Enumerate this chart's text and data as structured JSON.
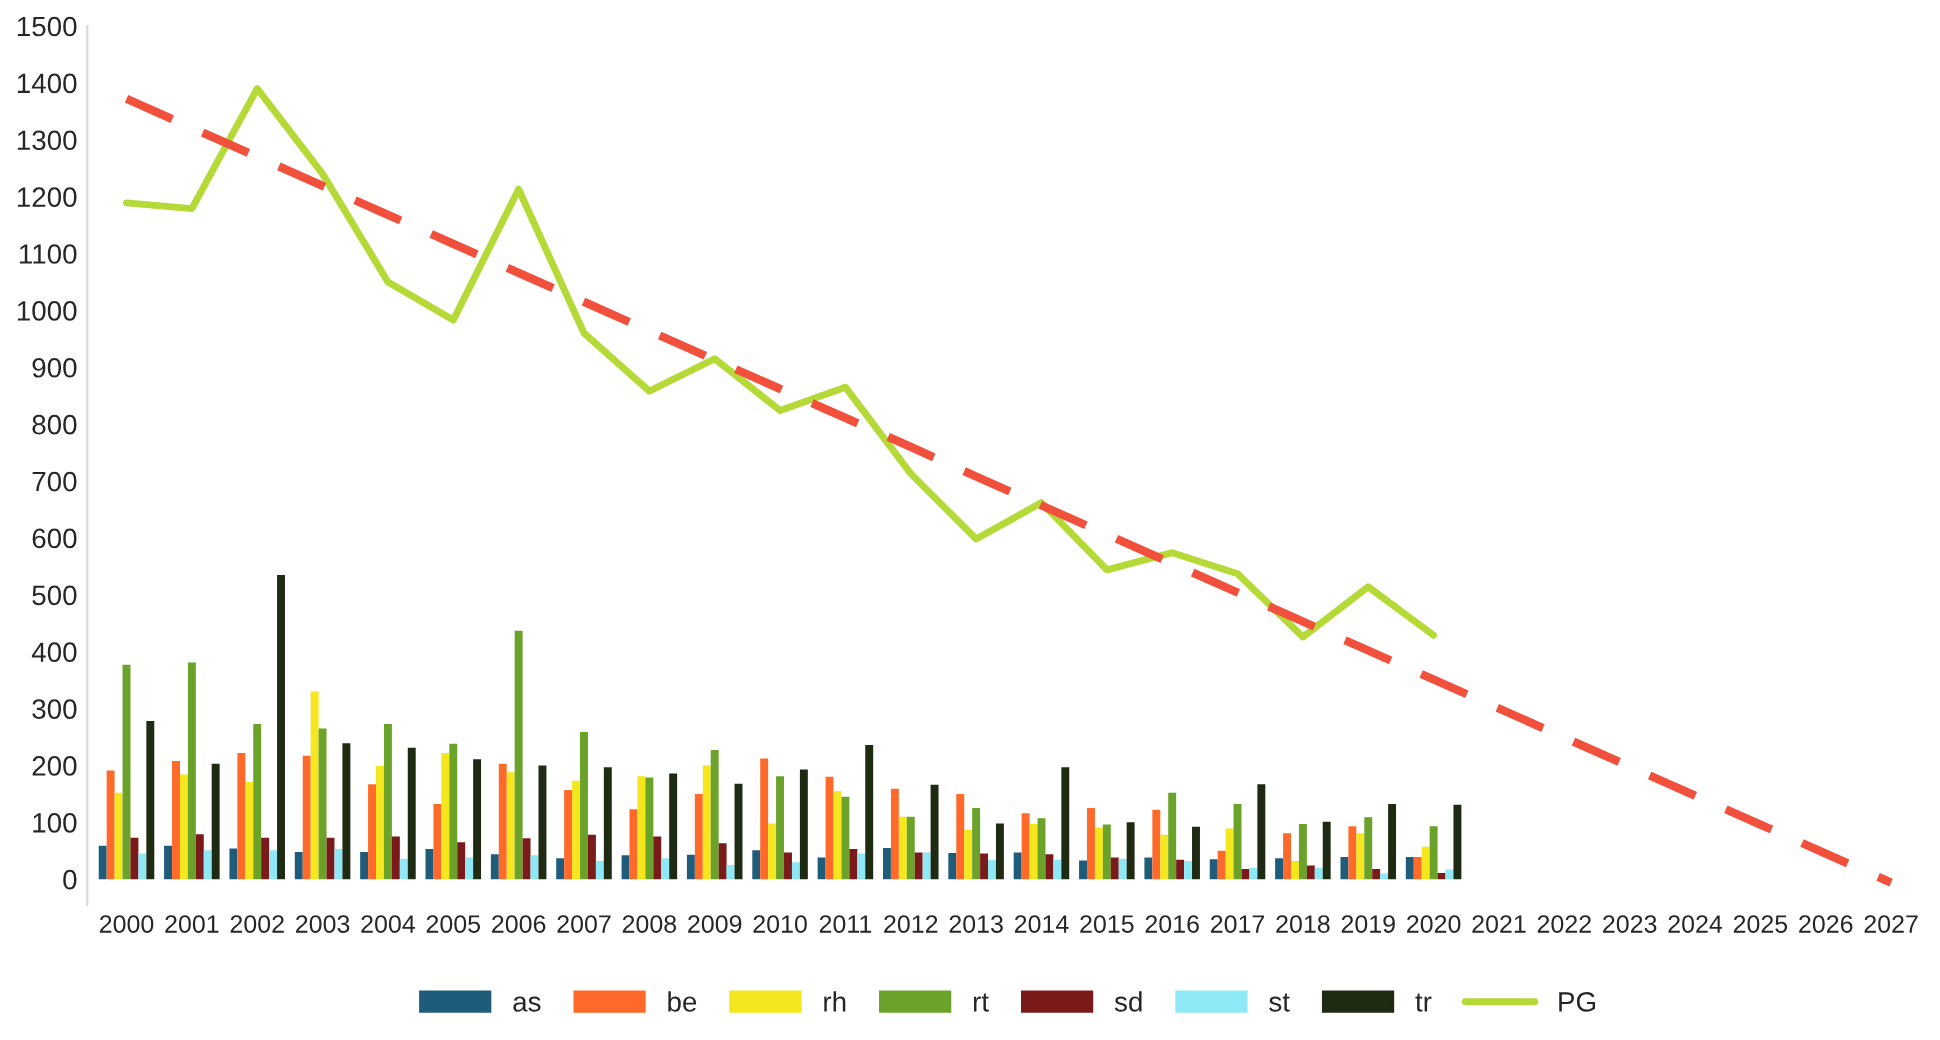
{
  "chart_data": {
    "type": "bar",
    "categories": [
      "2000",
      "2001",
      "2002",
      "2003",
      "2004",
      "2005",
      "2006",
      "2007",
      "2008",
      "2009",
      "2010",
      "2011",
      "2012",
      "2013",
      "2014",
      "2015",
      "2016",
      "2017",
      "2018",
      "2019",
      "2020",
      "2021",
      "2022",
      "2023",
      "2024",
      "2025",
      "2026",
      "2027"
    ],
    "ylim": [
      -45,
      1500
    ],
    "yticks": [
      0,
      100,
      200,
      300,
      400,
      500,
      600,
      700,
      800,
      900,
      1000,
      1100,
      1200,
      1300,
      1400,
      1500
    ],
    "grid": false,
    "legend": "bottom",
    "series": [
      {
        "name": "as",
        "color": "#1f5c7a",
        "values": [
          59,
          59,
          54,
          48,
          48,
          53,
          44,
          37,
          42,
          43,
          51,
          38,
          55,
          46,
          47,
          33,
          38,
          35,
          37,
          39,
          39,
          null,
          null,
          null,
          null,
          null,
          null,
          null
        ]
      },
      {
        "name": "be",
        "color": "#ff6a2a",
        "values": [
          191,
          208,
          222,
          217,
          167,
          132,
          203,
          157,
          123,
          150,
          212,
          180,
          159,
          150,
          116,
          125,
          122,
          50,
          81,
          93,
          39,
          null,
          null,
          null,
          null,
          null,
          null,
          null
        ]
      },
      {
        "name": "rh",
        "color": "#f5e61e",
        "values": [
          152,
          184,
          171,
          330,
          199,
          222,
          188,
          173,
          181,
          200,
          98,
          155,
          110,
          87,
          97,
          91,
          78,
          89,
          32,
          81,
          57,
          null,
          null,
          null,
          null,
          null,
          null,
          null
        ]
      },
      {
        "name": "rt",
        "color": "#6aa22a",
        "values": [
          377,
          381,
          273,
          265,
          273,
          238,
          437,
          259,
          179,
          227,
          181,
          145,
          110,
          125,
          107,
          96,
          152,
          132,
          97,
          109,
          93,
          null,
          null,
          null,
          null,
          null,
          null,
          null
        ]
      },
      {
        "name": "sd",
        "color": "#7a1a1a",
        "values": [
          73,
          79,
          73,
          73,
          75,
          65,
          72,
          78,
          75,
          63,
          47,
          53,
          47,
          45,
          44,
          38,
          34,
          18,
          24,
          18,
          11,
          null,
          null,
          null,
          null,
          null,
          null,
          null
        ]
      },
      {
        "name": "st",
        "color": "#8fe8f5",
        "values": [
          45,
          51,
          51,
          53,
          36,
          38,
          42,
          32,
          37,
          25,
          30,
          45,
          47,
          34,
          34,
          36,
          32,
          20,
          20,
          10,
          17,
          null,
          null,
          null,
          null,
          null,
          null,
          null
        ]
      },
      {
        "name": "tr",
        "color": "#1f2a12",
        "values": [
          278,
          203,
          535,
          239,
          231,
          211,
          200,
          197,
          186,
          168,
          193,
          236,
          166,
          98,
          197,
          100,
          92,
          167,
          101,
          132,
          131,
          null,
          null,
          null,
          null,
          null,
          null,
          null
        ]
      },
      {
        "name": "PG",
        "type": "line",
        "color": "#b5d936",
        "line_style": "solid",
        "values": [
          1189,
          1179,
          1390,
          1240,
          1050,
          983,
          1213,
          960,
          858,
          915,
          824,
          865,
          713,
          598,
          662,
          544,
          574,
          537,
          426,
          514,
          429,
          null,
          null,
          null,
          null,
          null,
          null,
          null
        ]
      },
      {
        "type": "line",
        "color": "#f0503c",
        "line_style": "dashed",
        "values": [
          1372,
          1321,
          1270,
          1219,
          1168,
          1117,
          1066,
          1015,
          964,
          913,
          862,
          811,
          760,
          708,
          657,
          606,
          555,
          504,
          453,
          402,
          351,
          300,
          249,
          198,
          147,
          96,
          45,
          -6
        ]
      }
    ]
  }
}
